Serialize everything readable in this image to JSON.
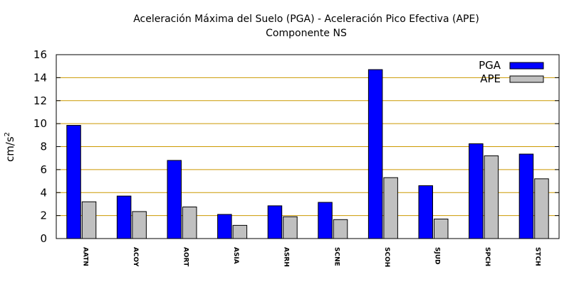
{
  "chart_data": {
    "type": "bar",
    "title": "Aceleración Máxima del Suelo (PGA) -  Aceleración Pico Efectiva (APE)",
    "subtitle": "Componente NS",
    "ylabel": "cm/s",
    "ylabel_sup": "2",
    "xlabel": "",
    "ylim": [
      0,
      16
    ],
    "yticks": [
      0,
      2,
      4,
      6,
      8,
      10,
      12,
      14,
      16
    ],
    "grid": "horizontal",
    "legend_position": "top-right",
    "categories": [
      "AATN",
      "ACOY",
      "AORT",
      "ASIA",
      "ASRH",
      "SCNE",
      "SCOH",
      "SJUD",
      "SPCH",
      "STCH"
    ],
    "series": [
      {
        "name": "PGA",
        "color": "#0000ff",
        "values": [
          9.85,
          3.7,
          6.8,
          2.1,
          2.85,
          3.15,
          14.7,
          4.6,
          8.25,
          7.35
        ]
      },
      {
        "name": "APE",
        "color": "#c0c0c0",
        "values": [
          3.2,
          2.35,
          2.75,
          1.15,
          1.9,
          1.65,
          5.3,
          1.7,
          7.2,
          5.2
        ]
      }
    ],
    "grid_color": "#cc9900"
  }
}
